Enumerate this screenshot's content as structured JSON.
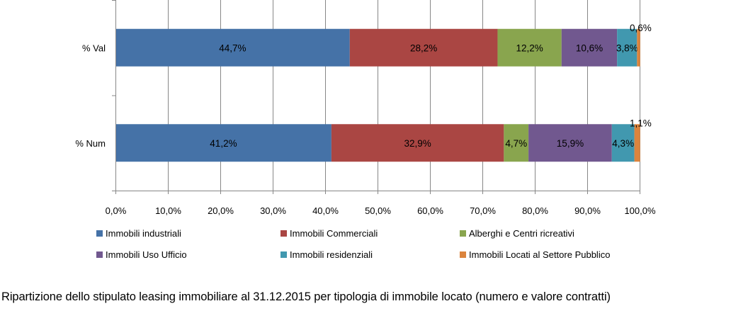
{
  "chart_data": {
    "type": "bar",
    "orientation": "horizontal",
    "stacked": true,
    "categories": [
      "% Val",
      "% Num"
    ],
    "series": [
      {
        "name": "Immobili industriali",
        "color": "#4572a7",
        "values": [
          44.7,
          41.2
        ],
        "labels": [
          "44,7%",
          "41,2%"
        ]
      },
      {
        "name": "Immobili Commerciali",
        "color": "#aa4643",
        "values": [
          28.2,
          32.9
        ],
        "labels": [
          "28,2%",
          "32,9%"
        ]
      },
      {
        "name": "Alberghi e Centri ricreativi",
        "color": "#89a54e",
        "values": [
          12.2,
          4.7
        ],
        "labels": [
          "12,2%",
          "4,7%"
        ]
      },
      {
        "name": "Immobili Uso Ufficio",
        "color": "#71588f",
        "values": [
          10.6,
          15.9
        ],
        "labels": [
          "10,6%",
          "15,9%"
        ]
      },
      {
        "name": "Immobili residenziali",
        "color": "#4198af",
        "values": [
          3.8,
          4.3
        ],
        "labels": [
          "3,8%",
          "4,3%"
        ]
      },
      {
        "name": "Immobili Locati al Settore Pubblico",
        "color": "#db843d",
        "values": [
          0.6,
          1.1
        ],
        "labels": [
          "0,6%",
          "1,1%"
        ]
      }
    ],
    "xlim": [
      0,
      100
    ],
    "xticks": [
      "0,0%",
      "10,0%",
      "20,0%",
      "30,0%",
      "40,0%",
      "50,0%",
      "60,0%",
      "70,0%",
      "80,0%",
      "90,0%",
      "100,0%"
    ],
    "grid": true,
    "legend": "bottom"
  },
  "caption": "Ripartizione dello stipulato leasing immobiliare al 31.12.2015 per tipologia di immobile locato (numero e valore contratti)"
}
